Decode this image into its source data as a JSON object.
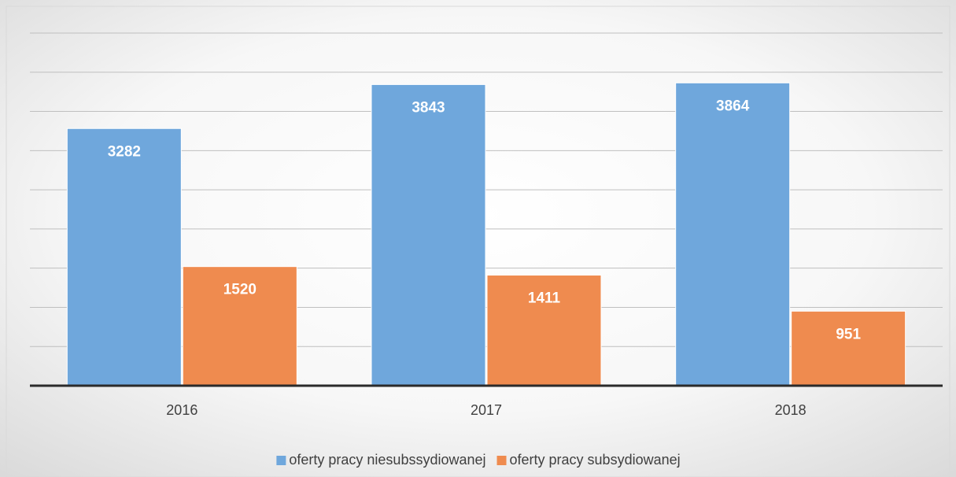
{
  "chart_data": {
    "type": "bar",
    "categories": [
      "2016",
      "2017",
      "2018"
    ],
    "series": [
      {
        "name": "oferty pracy niesubssydiowanej",
        "color": "#6fa7dc",
        "values": [
          3282,
          3843,
          3864
        ]
      },
      {
        "name": "oferty pracy subsydiowanej",
        "color": "#ef8b4f",
        "values": [
          1520,
          1411,
          951
        ]
      }
    ],
    "ylim": [
      0,
      4500
    ],
    "yticks": [
      0,
      500,
      1000,
      1500,
      2000,
      2500,
      3000,
      3500,
      4000,
      4500
    ],
    "grid": true,
    "legend": "bottom"
  }
}
